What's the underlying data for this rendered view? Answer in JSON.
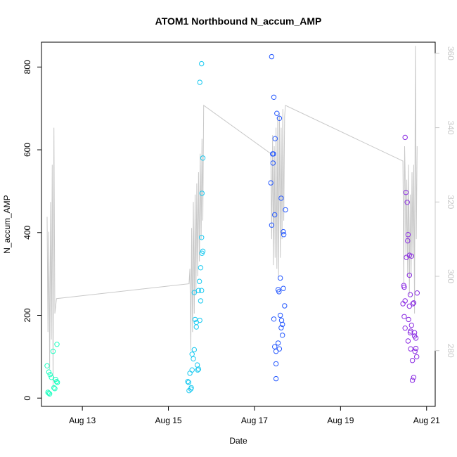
{
  "chart_data": {
    "type": "scatter",
    "title": "ATOM1 Northbound N_accum_AMP",
    "xlabel": "Date",
    "ylabel": "N_accum_AMP",
    "x_ticks": [
      "Aug 13",
      "Aug 15",
      "Aug 17",
      "Aug 19",
      "Aug 21"
    ],
    "x_tick_values": [
      13,
      15,
      17,
      19,
      21
    ],
    "xlim": [
      12.05,
      21.2
    ],
    "ylim": [
      -20,
      860
    ],
    "y_ticks": [
      0,
      200,
      400,
      600,
      800
    ],
    "y2lim": [
      265,
      363
    ],
    "y2_ticks": [
      280,
      300,
      320,
      340,
      360
    ],
    "grid": false,
    "colors": {
      "line": "#c8c8c8",
      "day_12": "#1affc0",
      "day_15": "#19c9f0",
      "day_17": "#2659ff",
      "day_20": "#8a2be2",
      "axis": "#000000",
      "axis_right": "#c8c8c8"
    },
    "series": [
      {
        "type": "points",
        "color_key": "day_12",
        "points": [
          [
            12.18,
            78
          ],
          [
            12.22,
            63
          ],
          [
            12.25,
            57
          ],
          [
            12.2,
            14
          ],
          [
            12.22,
            12
          ],
          [
            12.24,
            10
          ],
          [
            12.28,
            50
          ],
          [
            12.32,
            113
          ],
          [
            12.34,
            25
          ],
          [
            12.36,
            23
          ],
          [
            12.38,
            45
          ],
          [
            12.4,
            40
          ],
          [
            12.41,
            130
          ],
          [
            12.42,
            38
          ]
        ]
      },
      {
        "type": "points",
        "color_key": "day_15",
        "points": [
          [
            15.45,
            40
          ],
          [
            15.47,
            38
          ],
          [
            15.5,
            60
          ],
          [
            15.48,
            18
          ],
          [
            15.52,
            22
          ],
          [
            15.53,
            25
          ],
          [
            15.55,
            68
          ],
          [
            15.55,
            106
          ],
          [
            15.58,
            95
          ],
          [
            15.6,
            117
          ],
          [
            15.6,
            255
          ],
          [
            15.62,
            190
          ],
          [
            15.65,
            183
          ],
          [
            15.65,
            172
          ],
          [
            15.67,
            80
          ],
          [
            15.68,
            68
          ],
          [
            15.7,
            70
          ],
          [
            15.7,
            260
          ],
          [
            15.72,
            282
          ],
          [
            15.73,
            188
          ],
          [
            15.75,
            315
          ],
          [
            15.75,
            235
          ],
          [
            15.77,
            260
          ],
          [
            15.77,
            388
          ],
          [
            15.78,
            350
          ],
          [
            15.8,
            355
          ],
          [
            15.78,
            495
          ],
          [
            15.8,
            580
          ],
          [
            15.73,
            763
          ],
          [
            15.77,
            808
          ]
        ]
      },
      {
        "type": "points",
        "color_key": "day_17",
        "points": [
          [
            17.38,
            520
          ],
          [
            17.4,
            825
          ],
          [
            17.42,
            590
          ],
          [
            17.43,
            568
          ],
          [
            17.4,
            418
          ],
          [
            17.44,
            590
          ],
          [
            17.45,
            727
          ],
          [
            17.47,
            443
          ],
          [
            17.48,
            627
          ],
          [
            17.45,
            191
          ],
          [
            17.47,
            124
          ],
          [
            17.5,
            113
          ],
          [
            17.5,
            83
          ],
          [
            17.5,
            47
          ],
          [
            17.52,
            688
          ],
          [
            17.55,
            133
          ],
          [
            17.55,
            262
          ],
          [
            17.57,
            257
          ],
          [
            17.58,
            676
          ],
          [
            17.58,
            119
          ],
          [
            17.6,
            290
          ],
          [
            17.6,
            200
          ],
          [
            17.62,
            170
          ],
          [
            17.62,
            483
          ],
          [
            17.63,
            188
          ],
          [
            17.65,
            152
          ],
          [
            17.65,
            178
          ],
          [
            17.67,
            402
          ],
          [
            17.67,
            265
          ],
          [
            17.68,
            395
          ],
          [
            17.7,
            223
          ],
          [
            17.72,
            455
          ]
        ]
      },
      {
        "type": "points",
        "color_key": "day_20",
        "points": [
          [
            20.45,
            228
          ],
          [
            20.47,
            272
          ],
          [
            20.48,
            268
          ],
          [
            20.48,
            197
          ],
          [
            20.5,
            169
          ],
          [
            20.5,
            235
          ],
          [
            20.5,
            630
          ],
          [
            20.52,
            497
          ],
          [
            20.53,
            340
          ],
          [
            20.55,
            473
          ],
          [
            20.56,
            380
          ],
          [
            20.57,
            395
          ],
          [
            20.57,
            138
          ],
          [
            20.58,
            190
          ],
          [
            20.6,
            345
          ],
          [
            20.6,
            222
          ],
          [
            20.6,
            297
          ],
          [
            20.62,
            250
          ],
          [
            20.62,
            158
          ],
          [
            20.63,
            162
          ],
          [
            20.63,
            119
          ],
          [
            20.65,
            343
          ],
          [
            20.65,
            176
          ],
          [
            20.67,
            91
          ],
          [
            20.67,
            43
          ],
          [
            20.68,
            228
          ],
          [
            20.7,
            50
          ],
          [
            20.7,
            230
          ],
          [
            20.72,
            158
          ],
          [
            20.72,
            150
          ],
          [
            20.73,
            113
          ],
          [
            20.75,
            145
          ],
          [
            20.75,
            120
          ],
          [
            20.77,
            100
          ],
          [
            20.78,
            254
          ]
        ]
      }
    ],
    "line_y2": [
      [
        12.18,
        316
      ],
      [
        12.2,
        285
      ],
      [
        12.22,
        312
      ],
      [
        12.24,
        275
      ],
      [
        12.26,
        320
      ],
      [
        12.28,
        283
      ],
      [
        12.3,
        330
      ],
      [
        12.32,
        270
      ],
      [
        12.34,
        340
      ],
      [
        12.36,
        290
      ],
      [
        12.4,
        294
      ],
      [
        15.48,
        298
      ],
      [
        15.5,
        302
      ],
      [
        15.52,
        280
      ],
      [
        15.54,
        313
      ],
      [
        15.56,
        285
      ],
      [
        15.58,
        320
      ],
      [
        15.6,
        290
      ],
      [
        15.62,
        322
      ],
      [
        15.64,
        295
      ],
      [
        15.66,
        325
      ],
      [
        15.68,
        300
      ],
      [
        15.7,
        328
      ],
      [
        15.72,
        304
      ],
      [
        15.74,
        333
      ],
      [
        15.76,
        310
      ],
      [
        15.78,
        337
      ],
      [
        15.8,
        315
      ],
      [
        15.82,
        346
      ],
      [
        17.38,
        333
      ],
      [
        17.4,
        310
      ],
      [
        17.42,
        338
      ],
      [
        17.44,
        303
      ],
      [
        17.46,
        335
      ],
      [
        17.48,
        305
      ],
      [
        17.5,
        340
      ],
      [
        17.52,
        302
      ],
      [
        17.54,
        343
      ],
      [
        17.56,
        300
      ],
      [
        17.58,
        344
      ],
      [
        17.6,
        305
      ],
      [
        17.62,
        340
      ],
      [
        17.64,
        310
      ],
      [
        17.66,
        345
      ],
      [
        17.68,
        315
      ],
      [
        17.7,
        343
      ],
      [
        17.72,
        346
      ],
      [
        20.45,
        331
      ],
      [
        20.47,
        298
      ],
      [
        20.49,
        335
      ],
      [
        20.5,
        328
      ],
      [
        20.52,
        305
      ],
      [
        20.54,
        326
      ],
      [
        20.56,
        300
      ],
      [
        20.58,
        330
      ],
      [
        20.6,
        295
      ],
      [
        20.62,
        322
      ],
      [
        20.64,
        300
      ],
      [
        20.66,
        328
      ],
      [
        20.68,
        305
      ],
      [
        20.7,
        330
      ],
      [
        20.72,
        290
      ],
      [
        20.74,
        362
      ],
      [
        20.76,
        310
      ],
      [
        20.78,
        335
      ]
    ]
  }
}
